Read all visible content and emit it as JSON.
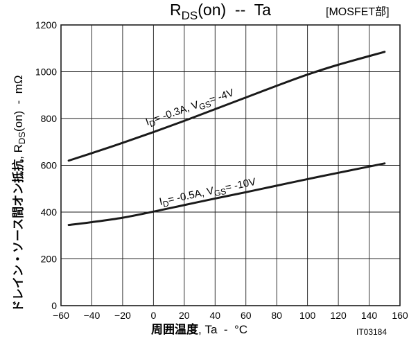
{
  "chart_data": {
    "type": "line",
    "title": {
      "main": "R",
      "main_sub": "DS",
      "main_rest": "(on)  --  Ta",
      "tag": "[MOSFET部]"
    },
    "xlabel": {
      "strong": "周囲温度",
      "rest": ", Ta  -  °C"
    },
    "ylabel": {
      "strong": "ドレイン・ソース間オン抵抗",
      "mid": ", R",
      "sub": "DS",
      "rest": "(on)  -  mΩ"
    },
    "figure_id": "IT03184",
    "xlim": [
      -60,
      160
    ],
    "ylim": [
      0,
      1200
    ],
    "x_ticks": [
      -60,
      -40,
      -20,
      0,
      20,
      40,
      60,
      80,
      100,
      120,
      140,
      160
    ],
    "y_ticks": [
      0,
      200,
      400,
      600,
      800,
      1000,
      1200
    ],
    "x_tick_labels": [
      "−60",
      "−40",
      "−20",
      "0",
      "20",
      "40",
      "60",
      "80",
      "100",
      "120",
      "140",
      "160"
    ],
    "y_tick_labels": [
      "0",
      "200",
      "400",
      "600",
      "800",
      "1000",
      "1200"
    ],
    "grid": true,
    "line_color": "#1a1a1a",
    "series": [
      {
        "label": {
          "i_main": "I",
          "i_sub": "D",
          "i_rest": "= -0.3A, V",
          "v_sub": "GS",
          "v_rest": "= -4V"
        },
        "x": [
          -55,
          -40,
          -20,
          0,
          20,
          40,
          60,
          80,
          100,
          120,
          150
        ],
        "y": [
          620,
          652,
          696,
          742,
          790,
          840,
          890,
          940,
          988,
          1030,
          1085
        ]
      },
      {
        "label": {
          "i_main": "I",
          "i_sub": "D",
          "i_rest": "= -0.5A, V",
          "v_sub": "GS",
          "v_rest": "= -10V"
        },
        "x": [
          -55,
          -40,
          -20,
          0,
          20,
          40,
          60,
          80,
          100,
          120,
          150
        ],
        "y": [
          345,
          357,
          376,
          402,
          430,
          458,
          485,
          513,
          541,
          568,
          608
        ]
      }
    ]
  }
}
